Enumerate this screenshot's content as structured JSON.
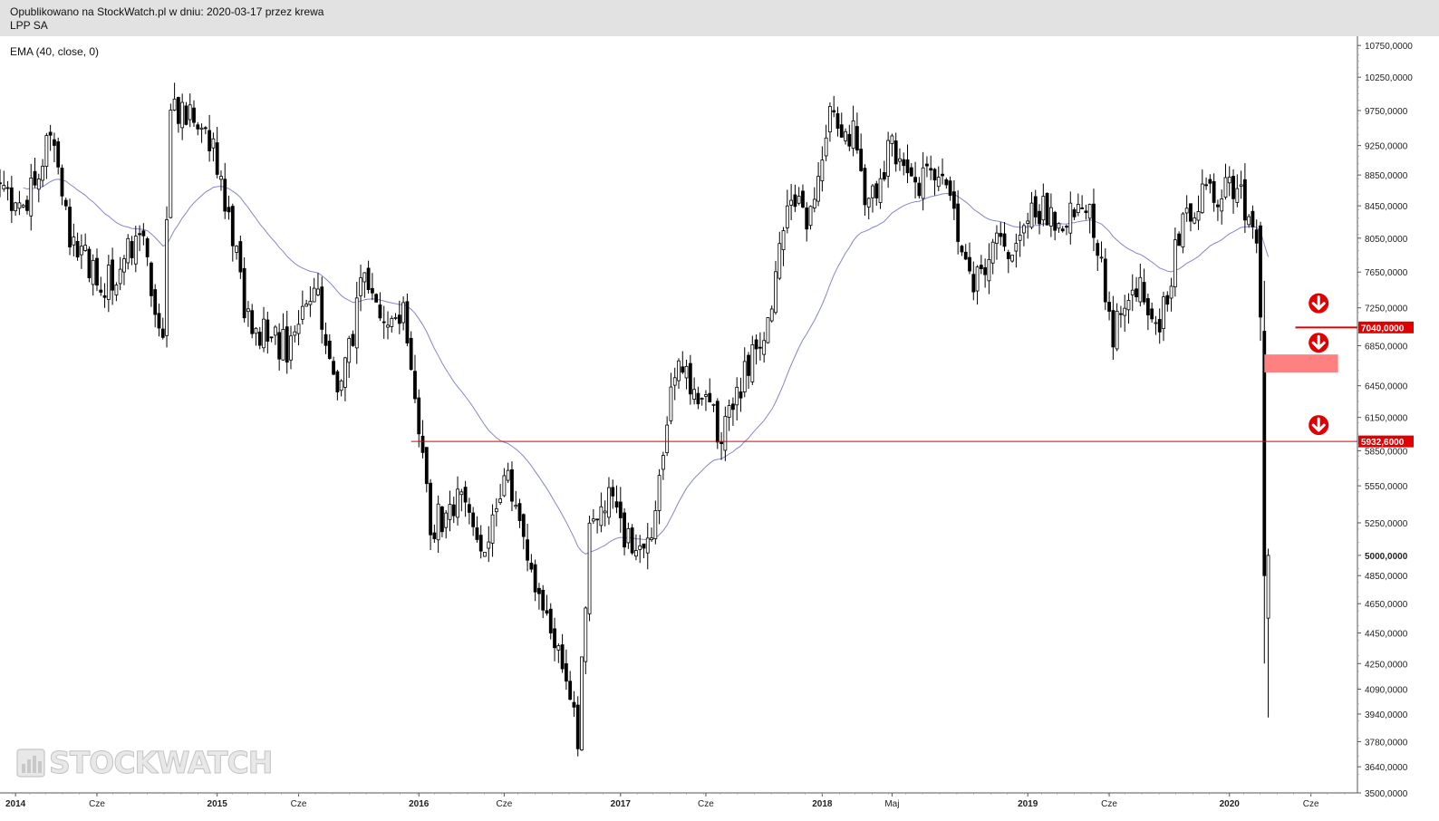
{
  "header": {
    "published": "Opublikowano na StockWatch.pl w dniu: 2020-03-17 przez krewa",
    "symbol": "LPP SA"
  },
  "indicator_label": "EMA (40, close, 0)",
  "watermark": "STOCKWATCH",
  "colors": {
    "candle": "#000000",
    "ema": "#8585d0",
    "support_line": "#e00000",
    "zone": "#ff8080",
    "badge": "#e00000",
    "arrow": "#e00000",
    "header_bg": "#e2e2e2"
  },
  "chart_data": {
    "type": "candlestick",
    "x_range": [
      "2013-12-09",
      "2020-08-24"
    ],
    "y_scale": "log",
    "ylim": [
      3500,
      10900
    ],
    "x_ticks": [
      {
        "date": "2014-01-06",
        "label": "2014",
        "bold": true
      },
      {
        "date": "2014-06-02",
        "label": "Cze",
        "bold": false
      },
      {
        "date": "2015-01-05",
        "label": "2015",
        "bold": true
      },
      {
        "date": "2015-06-01",
        "label": "Cze",
        "bold": false
      },
      {
        "date": "2016-01-04",
        "label": "2016",
        "bold": true
      },
      {
        "date": "2016-06-06",
        "label": "Cze",
        "bold": false
      },
      {
        "date": "2017-01-02",
        "label": "2017",
        "bold": true
      },
      {
        "date": "2017-06-05",
        "label": "Cze",
        "bold": false
      },
      {
        "date": "2018-01-01",
        "label": "2018",
        "bold": true
      },
      {
        "date": "2018-05-07",
        "label": "Maj",
        "bold": false
      },
      {
        "date": "2019-01-07",
        "label": "2019",
        "bold": true
      },
      {
        "date": "2019-06-03",
        "label": "Cze",
        "bold": false
      },
      {
        "date": "2020-01-06",
        "label": "2020",
        "bold": true
      },
      {
        "date": "2020-06-01",
        "label": "Cze",
        "bold": false
      }
    ],
    "y_ticks": [
      {
        "value": 10750,
        "label": "10750,0000"
      },
      {
        "value": 10250,
        "label": "10250,0000"
      },
      {
        "value": 9750,
        "label": "9750,0000"
      },
      {
        "value": 9250,
        "label": "9250,0000"
      },
      {
        "value": 8850,
        "label": "8850,0000"
      },
      {
        "value": 8450,
        "label": "8450,0000"
      },
      {
        "value": 8050,
        "label": "8050,0000"
      },
      {
        "value": 7650,
        "label": "7650,0000"
      },
      {
        "value": 7250,
        "label": "7250,0000"
      },
      {
        "value": 6850,
        "label": "6850,0000"
      },
      {
        "value": 6450,
        "label": "6450,0000"
      },
      {
        "value": 6150,
        "label": "6150,0000"
      },
      {
        "value": 5850,
        "label": "5850,0000"
      },
      {
        "value": 5550,
        "label": "5550,0000"
      },
      {
        "value": 5250,
        "label": "5250,0000"
      },
      {
        "value": 5000,
        "label": "5000,0000",
        "bold": true
      },
      {
        "value": 4850,
        "label": "4850,0000"
      },
      {
        "value": 4650,
        "label": "4650,0000"
      },
      {
        "value": 4450,
        "label": "4450,0000"
      },
      {
        "value": 4250,
        "label": "4250,0000"
      },
      {
        "value": 4090,
        "label": "4090,0000"
      },
      {
        "value": 3940,
        "label": "3940,0000"
      },
      {
        "value": 3780,
        "label": "3780,0000"
      },
      {
        "value": 3640,
        "label": "3640,0000"
      },
      {
        "value": 3500,
        "label": "3500,0000"
      }
    ],
    "price_anchors": [
      [
        "2013-12-09",
        8800
      ],
      [
        "2014-01-20",
        8300
      ],
      [
        "2014-03-10",
        9500
      ],
      [
        "2014-04-14",
        8100
      ],
      [
        "2014-06-16",
        7500
      ],
      [
        "2014-08-18",
        8100
      ],
      [
        "2014-09-29",
        7000
      ],
      [
        "2014-10-13",
        9700
      ],
      [
        "2014-12-15",
        9600
      ],
      [
        "2015-01-19",
        8500
      ],
      [
        "2015-03-02",
        7100
      ],
      [
        "2015-05-18",
        6800
      ],
      [
        "2015-06-29",
        7600
      ],
      [
        "2015-08-10",
        6300
      ],
      [
        "2015-09-28",
        7600
      ],
      [
        "2015-11-09",
        6900
      ],
      [
        "2015-12-07",
        7200
      ],
      [
        "2016-01-25",
        5200
      ],
      [
        "2016-03-21",
        5500
      ],
      [
        "2016-04-25",
        5000
      ],
      [
        "2016-06-13",
        5600
      ],
      [
        "2016-07-18",
        5000
      ],
      [
        "2016-09-05",
        4400
      ],
      [
        "2016-10-17",
        3800
      ],
      [
        "2016-11-07",
        5200
      ],
      [
        "2016-12-12",
        5500
      ],
      [
        "2017-01-23",
        5000
      ],
      [
        "2017-03-06",
        5300
      ],
      [
        "2017-04-10",
        6600
      ],
      [
        "2017-05-22",
        6400
      ],
      [
        "2017-07-03",
        6000
      ],
      [
        "2017-08-21",
        6700
      ],
      [
        "2017-09-25",
        7000
      ],
      [
        "2017-11-06",
        8700
      ],
      [
        "2017-12-04",
        8100
      ],
      [
        "2018-01-15",
        9800
      ],
      [
        "2018-02-26",
        9400
      ],
      [
        "2018-03-26",
        8400
      ],
      [
        "2018-05-07",
        9300
      ],
      [
        "2018-06-18",
        8800
      ],
      [
        "2018-08-06",
        8700
      ],
      [
        "2018-10-01",
        7600
      ],
      [
        "2018-11-19",
        8000
      ],
      [
        "2018-12-17",
        7800
      ],
      [
        "2019-01-14",
        8500
      ],
      [
        "2019-03-04",
        8200
      ],
      [
        "2019-04-29",
        8500
      ],
      [
        "2019-06-10",
        7000
      ],
      [
        "2019-07-29",
        7600
      ],
      [
        "2019-09-02",
        7000
      ],
      [
        "2019-10-14",
        8400
      ],
      [
        "2019-11-25",
        8600
      ],
      [
        "2020-01-13",
        8700
      ],
      [
        "2020-02-10",
        8400
      ],
      [
        "2020-02-24",
        8100
      ],
      [
        "2020-03-02",
        7100
      ],
      [
        "2020-03-09",
        5000
      ],
      [
        "2020-03-16",
        4800
      ]
    ],
    "candles_shown": "weekly candlesticks from 2013-12 to 2020-03 (approximate)",
    "ema_period": 40,
    "support_level": 5932.6,
    "resistance_level": 7040.0,
    "support_label": "5932,6000",
    "resistance_label": "7040,0000",
    "zone": {
      "from": "2020-03-09",
      "to": "2020-07-20",
      "low": 6580,
      "high": 6760
    },
    "arrows": [
      {
        "date": "2020-06-15",
        "value": 7300
      },
      {
        "date": "2020-06-15",
        "value": 6880
      },
      {
        "date": "2020-06-15",
        "value": 6080
      }
    ]
  }
}
